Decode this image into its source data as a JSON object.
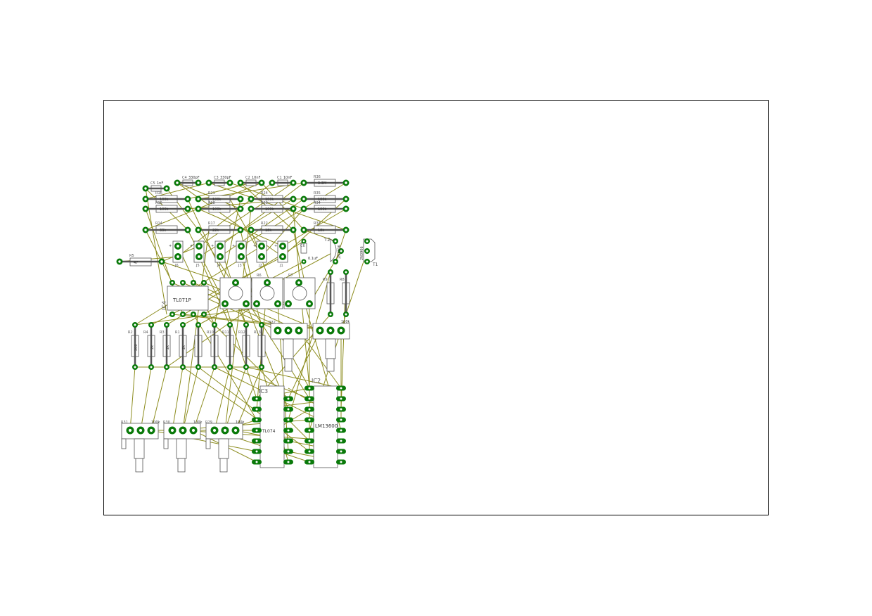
{
  "board": {
    "colors": {
      "background": "#ffffff",
      "frame": "#000000",
      "pad_outer": "#0a7a0a",
      "pad_inner": "#ffffff",
      "ratsnest": "#8c8c1e",
      "outline": "#555555"
    }
  },
  "designators": {
    "r36": "R36",
    "r35": "R35",
    "r34": "R34",
    "r33": "R33",
    "r24": "R24",
    "r23": "R23",
    "r22": "R22",
    "r21": "R21",
    "r18": "R18",
    "r17": "R17",
    "r16": "R16",
    "r15": "R15",
    "r5": "R5",
    "r9": "R9",
    "r8": "R8",
    "r6": "R6",
    "r7": "R7",
    "r2": "R2",
    "r4": "R4",
    "r3": "R3",
    "r1": "R1",
    "r10": "R10",
    "r11": "R11",
    "r12": "R12",
    "r13": "R13",
    "r14": "R14",
    "r31": "R31",
    "r30": "R30",
    "r29": "R29",
    "r32": "R32",
    "r19": "R19",
    "c1": "C1",
    "c2": "C2",
    "c3": "C3",
    "c4": "C4",
    "c5": "C5",
    "c6": "C6",
    "j1": "J1",
    "j2": "J2",
    "j3": "J3",
    "j4": "J4",
    "j5": "J5",
    "j6": "J6",
    "t1": "T1",
    "t2": "T2",
    "ic2": "IC2",
    "ic3": "IC3",
    "ic4": "IC4"
  },
  "values": {
    "c1": "10nF",
    "c2": "10nF",
    "c3": "330pF",
    "c4": "330pF",
    "c5": "1nF",
    "c6": "0.1uF",
    "r36": "3.3M",
    "r35": "100k",
    "r34": "100k",
    "r33": "100k",
    "r24": "100k",
    "r23": "100k",
    "r22": "100k",
    "r21": "100k",
    "r20": "100k",
    "r_47": "47",
    "r_33k": "33k",
    "r_22k": "22k",
    "r_18k": "18k",
    "r_18k_b": "18k",
    "r_200": "200",
    "r_2k": "2k",
    "ic4": "TL071P",
    "ic2": "LM13600",
    "ic3": "TL074",
    "t1": "2N3906",
    "t2": "2N3906",
    "pot_value": "100k"
  },
  "plus": "+"
}
